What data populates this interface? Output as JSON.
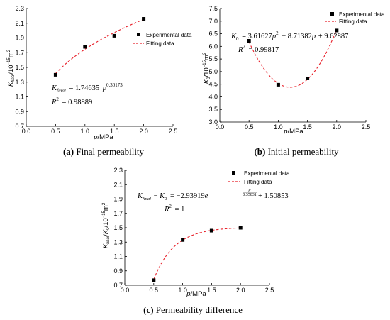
{
  "colors": {
    "fit": "#e8202a",
    "marker": "#000000",
    "axis": "#000000"
  },
  "legend": {
    "experimental": "Experimental data",
    "fitting": "Fitting data"
  },
  "chart_data": [
    {
      "type": "scatter",
      "title": "",
      "caption_label": "(a)",
      "caption_text": " Final permeability",
      "xlabel": "p/MPa",
      "ylabel": "K_final/10^-15 m^2",
      "xlim": [
        0.0,
        2.5
      ],
      "ylim": [
        0.7,
        2.3
      ],
      "xticks": [
        "0.0",
        "0.5",
        "1.0",
        "1.5",
        "2.0",
        "2.5"
      ],
      "yticks": [
        "0.7",
        "0.9",
        "1.1",
        "1.3",
        "1.5",
        "1.7",
        "1.9",
        "2.1",
        "2.3"
      ],
      "series": [
        {
          "name": "Experimental data",
          "x": [
            0.5,
            1.0,
            1.5,
            2.0
          ],
          "y": [
            1.4,
            1.78,
            1.93,
            2.16
          ]
        }
      ],
      "fit": {
        "name": "Fitting data",
        "model": "power",
        "a": 1.74635,
        "b": 0.30173,
        "range": [
          0.5,
          2.0
        ]
      },
      "equation": "K_final = 1.74635 p^0.30173",
      "equation_main": "= 1.74635",
      "equation_exp": "0.30173",
      "r2_label": "= 0.98889",
      "legend_position": "top-right"
    },
    {
      "type": "scatter",
      "title": "",
      "caption_label": "(b)",
      "caption_text": " Initial permeability",
      "xlabel": "p/MPa",
      "ylabel": "K_0/10^-15 m^2",
      "xlim": [
        0.0,
        2.5
      ],
      "ylim": [
        3.0,
        7.5
      ],
      "xticks": [
        "0.0",
        "0.5",
        "1.0",
        "1.5",
        "2.0",
        "2.5"
      ],
      "yticks": [
        "3.0",
        "3.5",
        "4.0",
        "4.5",
        "5.0",
        "5.5",
        "6.0",
        "6.5",
        "7.0",
        "7.5"
      ],
      "series": [
        {
          "name": "Experimental data",
          "x": [
            0.5,
            1.0,
            1.5,
            2.0
          ],
          "y": [
            6.22,
            4.48,
            4.73,
            6.63
          ]
        }
      ],
      "fit": {
        "name": "Fitting data",
        "model": "quadratic",
        "a": 3.61627,
        "b": -8.71382,
        "c": 9.62887,
        "range": [
          0.5,
          2.0
        ]
      },
      "equation": "K_0 = 3.61627 p^2 - 8.71382 p + 9.62887",
      "equation_main": "= 3.61627",
      "equation_rest": "− 8.71382",
      "equation_const": "+ 9.62887",
      "r2_label": "= 0.99817",
      "legend_position": "top-right"
    },
    {
      "type": "scatter",
      "title": "",
      "caption_label": "(c)",
      "caption_text": " Permeability difference",
      "xlabel": "p/MPa",
      "ylabel": "K_final/K_0/10^-15 m^2",
      "xlim": [
        0.0,
        2.5
      ],
      "ylim": [
        0.7,
        2.3
      ],
      "xticks": [
        "0.0",
        "0.5",
        "1.0",
        "1.5",
        "2.0",
        "2.5"
      ],
      "yticks": [
        "0.7",
        "0.9",
        "1.1",
        "1.3",
        "1.5",
        "1.7",
        "1.9",
        "2.1",
        "2.3"
      ],
      "series": [
        {
          "name": "Experimental data",
          "x": [
            0.5,
            1.0,
            1.5,
            2.0
          ],
          "y": [
            0.77,
            1.33,
            1.46,
            1.5
          ]
        }
      ],
      "fit": {
        "name": "Fitting data",
        "model": "exponential",
        "a": -2.93919,
        "t": 0.35831,
        "c": 1.50853,
        "range": [
          0.5,
          2.0
        ]
      },
      "equation": "K_final - K_0 = -2.93919 e^(-p/0.35831) + 1.50853",
      "equation_main": "= −2.93919",
      "equation_exp": "0.35831",
      "equation_const": "+ 1.50853",
      "r2_label": "= 1",
      "legend_position": "top-right"
    }
  ]
}
